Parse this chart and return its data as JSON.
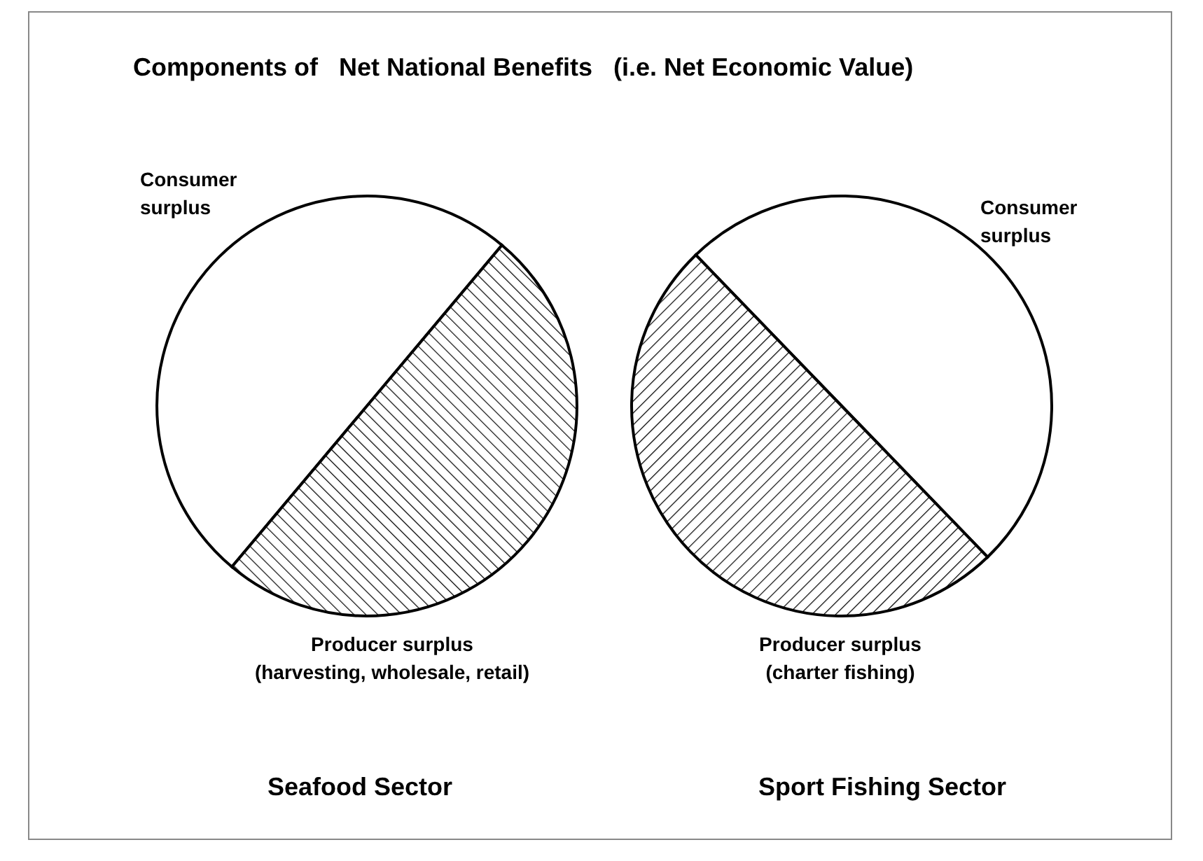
{
  "chart_data": [
    {
      "type": "pie",
      "title": "Components of   Net National Benefits   (i.e. Net Economic Value)",
      "xlabel": "Seafood Sector",
      "categories": [
        "Consumer surplus",
        "Producer surplus (harvesting, wholesale, retail)"
      ],
      "values": [
        50,
        50
      ],
      "colors": [
        "#ffffff",
        "#000000"
      ],
      "legend": false
    },
    {
      "type": "pie",
      "xlabel": "Sport Fishing Sector",
      "categories": [
        "Consumer surplus",
        "Producer surplus (charter fishing)"
      ],
      "values": [
        50,
        50
      ],
      "colors": [
        "#ffffff",
        "#000000"
      ],
      "legend": false
    }
  ]
}
